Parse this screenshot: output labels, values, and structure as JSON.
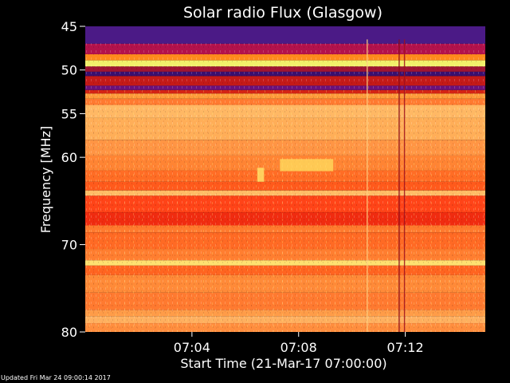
{
  "chart_data": {
    "type": "heatmap",
    "title": "Solar radio Flux (Glasgow)",
    "xlabel": "Start Time (21-Mar-17 07:00:00)",
    "ylabel_text": "Frequency ",
    "ylabel_unit": "MHz",
    "x_unit": "minutes after 07:00",
    "xlim": [
      0,
      15
    ],
    "ylim": [
      45,
      80
    ],
    "y_inverted": true,
    "x_ticks": [
      {
        "value": 4,
        "label": "07:04"
      },
      {
        "value": 8,
        "label": "07:08"
      },
      {
        "value": 12,
        "label": "07:12"
      }
    ],
    "y_ticks": [
      {
        "value": 45,
        "label": "45"
      },
      {
        "value": 50,
        "label": "50"
      },
      {
        "value": 55,
        "label": "55"
      },
      {
        "value": 60,
        "label": "60"
      },
      {
        "value": 70,
        "label": "70"
      },
      {
        "value": 80,
        "label": "80"
      }
    ],
    "frequency_bands": [
      {
        "from": 45.0,
        "to": 47.0,
        "color": "#4b1a86"
      },
      {
        "from": 47.0,
        "to": 48.2,
        "color": "#b3124c"
      },
      {
        "from": 48.2,
        "to": 48.9,
        "color": "#ff8a1c"
      },
      {
        "from": 48.9,
        "to": 49.6,
        "color": "#f2f06a"
      },
      {
        "from": 49.6,
        "to": 50.2,
        "color": "#a01432"
      },
      {
        "from": 50.2,
        "to": 50.7,
        "color": "#3a0f6e"
      },
      {
        "from": 50.7,
        "to": 51.8,
        "color": "#c41a18"
      },
      {
        "from": 51.8,
        "to": 52.3,
        "color": "#6b117a"
      },
      {
        "from": 52.3,
        "to": 52.7,
        "color": "#d42414"
      },
      {
        "from": 52.7,
        "to": 53.3,
        "color": "#ff9a3a"
      },
      {
        "from": 53.3,
        "to": 54.0,
        "color": "#ff7a30"
      },
      {
        "from": 54.0,
        "to": 55.5,
        "color": "#ffb864"
      },
      {
        "from": 55.5,
        "to": 58.0,
        "color": "#ffae58"
      },
      {
        "from": 58.0,
        "to": 59.8,
        "color": "#ff9544"
      },
      {
        "from": 59.8,
        "to": 61.5,
        "color": "#ff8433"
      },
      {
        "from": 61.5,
        "to": 62.8,
        "color": "#ff6d25"
      },
      {
        "from": 62.8,
        "to": 63.8,
        "color": "#ff5a1c"
      },
      {
        "from": 63.8,
        "to": 64.4,
        "color": "#ffbc66"
      },
      {
        "from": 64.4,
        "to": 66.3,
        "color": "#ff4418"
      },
      {
        "from": 66.3,
        "to": 67.8,
        "color": "#f02c10"
      },
      {
        "from": 67.8,
        "to": 68.6,
        "color": "#ff7a2e"
      },
      {
        "from": 68.6,
        "to": 70.5,
        "color": "#ff6a24"
      },
      {
        "from": 70.5,
        "to": 71.8,
        "color": "#ff7e30"
      },
      {
        "from": 71.8,
        "to": 72.4,
        "color": "#ffe070"
      },
      {
        "from": 72.4,
        "to": 73.5,
        "color": "#ff6420"
      },
      {
        "from": 73.5,
        "to": 75.5,
        "color": "#ff8a38"
      },
      {
        "from": 75.5,
        "to": 77.5,
        "color": "#ff7a30"
      },
      {
        "from": 77.5,
        "to": 78.2,
        "color": "#ff9c48"
      },
      {
        "from": 78.2,
        "to": 79.0,
        "color": "#ffb060"
      },
      {
        "from": 79.0,
        "to": 80.0,
        "color": "#ff8e3e"
      }
    ],
    "features": [
      {
        "name": "dark vertical line",
        "time": 11.75,
        "color": "#8a0a1a"
      },
      {
        "name": "dark vertical line",
        "time": 11.95,
        "color": "#a0101e"
      },
      {
        "name": "faint vertical line",
        "time": 10.55,
        "color": "#ffd080"
      },
      {
        "name": "bright patch",
        "time_from": 7.3,
        "time_to": 9.3,
        "freq_from": 60.2,
        "freq_to": 61.6,
        "color": "#ffe060"
      },
      {
        "name": "bright patch",
        "time_from": 6.45,
        "time_to": 6.7,
        "freq_from": 61.2,
        "freq_to": 62.8,
        "color": "#fff070"
      }
    ]
  },
  "footer": {
    "updated": "Updated Fri Mar 24 09:00:14 2017"
  }
}
